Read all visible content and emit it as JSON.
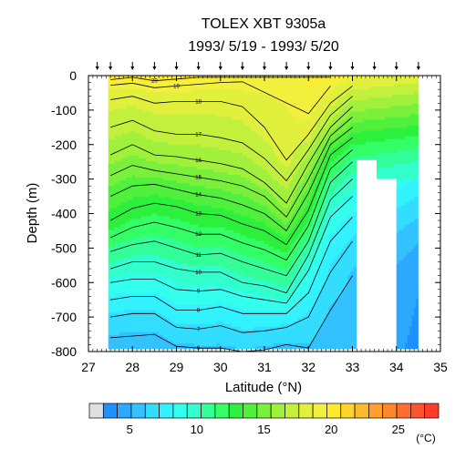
{
  "chart_data": {
    "type": "heatmap",
    "title": "TOLEX XBT 9305a",
    "subtitle": "1993/ 5/19 - 1993/ 5/20",
    "xlabel": "Latitude (°N)",
    "ylabel": "Depth (m)",
    "xlim": [
      27,
      35
    ],
    "ylim": [
      -800,
      0
    ],
    "x_ticks": [
      "27",
      "28",
      "29",
      "30",
      "31",
      "32",
      "33",
      "34",
      "35"
    ],
    "y_ticks": [
      "0",
      "-100",
      "-200",
      "-300",
      "-400",
      "-500",
      "-600",
      "-700",
      "-800"
    ],
    "station_latitudes": [
      27.2,
      27.5,
      28.0,
      28.5,
      29.0,
      29.5,
      30.0,
      30.5,
      31.0,
      31.5,
      32.0,
      32.5,
      33.0,
      33.5,
      34.0,
      34.5
    ],
    "section_columns": [
      {
        "lat": 27.5,
        "isotherms": {
          "20": -12,
          "19": -28,
          "18": -70,
          "17": -150,
          "16": -230,
          "15": -290,
          "14": -350,
          "13": -420,
          "12": -470,
          "11": -510,
          "10": -560,
          "9": -600,
          "8": -650,
          "7": -700,
          "6": -760
        }
      },
      {
        "lat": 28.0,
        "isotherms": {
          "20": -5,
          "19": -22,
          "18": -60,
          "17": -130,
          "16": -200,
          "15": -260,
          "14": -320,
          "13": -385,
          "12": -440,
          "11": -490,
          "10": -540,
          "9": -590,
          "8": -640,
          "7": -690,
          "6": -755
        }
      },
      {
        "lat": 28.5,
        "isotherms": {
          "20": -15,
          "19": -35,
          "18": -80,
          "17": -160,
          "16": -230,
          "15": -275,
          "14": -315,
          "13": -370,
          "12": -425,
          "11": -480,
          "10": -540,
          "9": -590,
          "8": -640,
          "7": -690,
          "6": -750
        }
      },
      {
        "lat": 29.0,
        "isotherms": {
          "20": -10,
          "19": -30,
          "18": -75,
          "17": -170,
          "16": -235,
          "15": -285,
          "14": -330,
          "13": -380,
          "12": -440,
          "11": -500,
          "10": -560,
          "9": -620,
          "8": -680,
          "7": -730,
          "6": -785
        }
      },
      {
        "lat": 29.5,
        "isotherms": {
          "20": -5,
          "19": -25,
          "18": -75,
          "17": -170,
          "16": -245,
          "15": -295,
          "14": -345,
          "13": -400,
          "12": -460,
          "11": -520,
          "10": -570,
          "9": -625,
          "8": -680,
          "7": -735,
          "6": -790
        }
      },
      {
        "lat": 30.0,
        "isotherms": {
          "20": 0,
          "19": -20,
          "18": -75,
          "17": -180,
          "16": -255,
          "15": -305,
          "14": -355,
          "13": -405,
          "12": -460,
          "11": -515,
          "10": -570,
          "9": -620,
          "8": -670,
          "7": -725,
          "6": -790
        }
      },
      {
        "lat": 30.5,
        "isotherms": {
          "20": 0,
          "19": -18,
          "18": -90,
          "17": -195,
          "16": -270,
          "15": -320,
          "14": -375,
          "13": -430,
          "12": -485,
          "11": -540,
          "10": -600,
          "9": -640,
          "8": -690,
          "7": -745,
          "6": -800
        }
      },
      {
        "lat": 31.0,
        "isotherms": {
          "20": 0,
          "19": 0,
          "18": -150,
          "17": -240,
          "16": -310,
          "15": -350,
          "14": -400,
          "13": -450,
          "12": -505,
          "11": -560,
          "10": -610,
          "9": -650,
          "8": -690,
          "7": -740,
          "6": -795
        }
      },
      {
        "lat": 31.5,
        "isotherms": {
          "20": 0,
          "19": 0,
          "18": -245,
          "17": -305,
          "16": -370,
          "15": -410,
          "14": -450,
          "13": -490,
          "12": -535,
          "11": -580,
          "10": -630,
          "9": -660,
          "8": -690,
          "7": -730,
          "6": -780
        }
      },
      {
        "lat": 32.0,
        "isotherms": {
          "20": 0,
          "19": -110,
          "18": -170,
          "17": -215,
          "16": -255,
          "15": -300,
          "14": -340,
          "13": -390,
          "12": -435,
          "11": -480,
          "10": -520,
          "9": -565,
          "8": -630,
          "7": -700,
          "6": -790
        }
      },
      {
        "lat": 32.5,
        "isotherms": {
          "20": -5,
          "19": -30,
          "18": -80,
          "17": -115,
          "16": -150,
          "15": -175,
          "14": -200,
          "13": -230,
          "12": -270,
          "11": -310,
          "10": -360,
          "9": -410,
          "8": -480,
          "7": -570,
          "6": -680
        }
      },
      {
        "lat": 33.0,
        "isotherms": {
          "20": 0,
          "19": 0,
          "18": -30,
          "17": -60,
          "16": -90,
          "15": -120,
          "14": -150,
          "13": -180,
          "12": -215,
          "11": -250,
          "10": -300,
          "9": -350,
          "8": -410,
          "7": -480,
          "6": -580
        }
      }
    ],
    "isotherm_labels": [
      "20",
      "19",
      "18",
      "17",
      "16",
      "15",
      "14",
      "13",
      "12",
      "11",
      "10",
      "9",
      "8",
      "7",
      "6"
    ],
    "no_data_regions": [
      {
        "lat_min": 33.1,
        "lat_max": 33.55,
        "depth_top": -245,
        "depth_bottom": -800
      },
      {
        "lat_min": 33.55,
        "lat_max": 34.0,
        "depth_top": -300,
        "depth_bottom": -800
      },
      {
        "lat_min": 34.5,
        "lat_max": 34.95,
        "depth_top": 0,
        "depth_bottom": -800
      }
    ],
    "colorbar": {
      "label": "(°C)",
      "ticks": [
        "5",
        "10",
        "15",
        "20",
        "25"
      ],
      "min": 2,
      "max": 28,
      "colors": [
        "#e0e0e0",
        "#1e90ff",
        "#2ca8ff",
        "#33c2ff",
        "#33ddff",
        "#33f2ff",
        "#33ffee",
        "#33ffcc",
        "#33ff99",
        "#33ff66",
        "#2cf03c",
        "#50f03c",
        "#7af03c",
        "#a0f03c",
        "#c3f03c",
        "#e0f03c",
        "#f2f03c",
        "#ffea2c",
        "#ffd22c",
        "#ffb92c",
        "#ffa02c",
        "#ff872c",
        "#ff6e2c",
        "#ff552c",
        "#ff3c2c"
      ]
    }
  }
}
